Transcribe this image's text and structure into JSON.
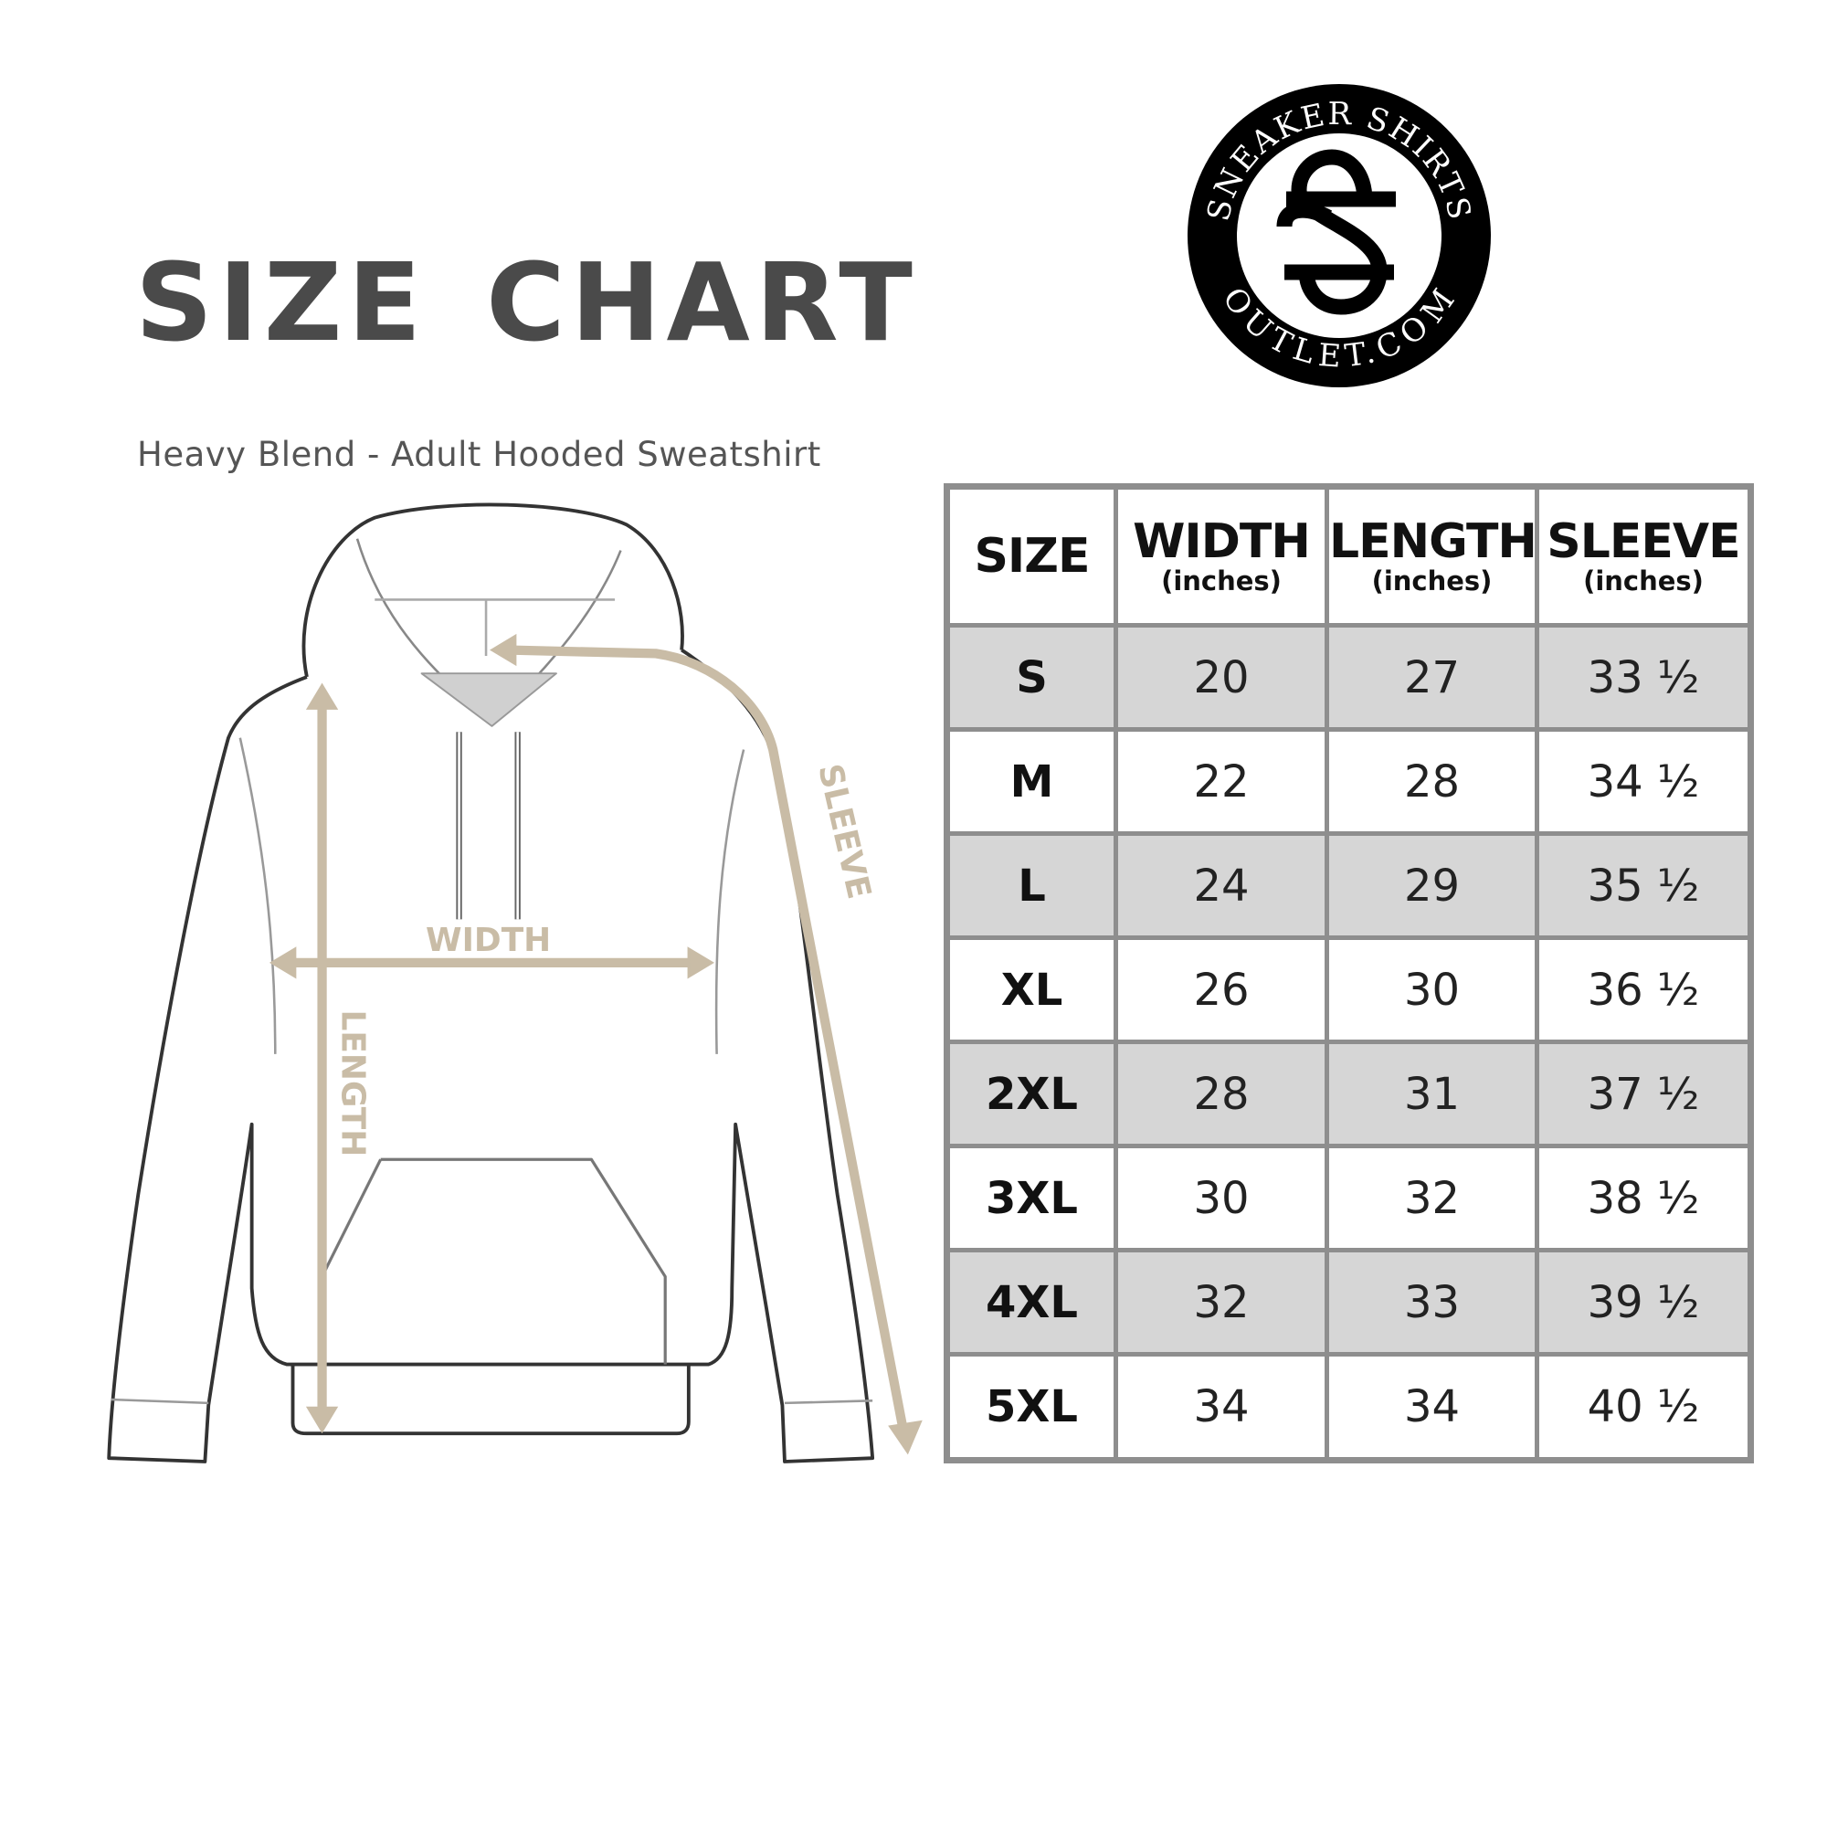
{
  "header": {
    "title": "SIZE CHART",
    "subtitle": "Heavy Blend - Adult Hooded Sweatshirt"
  },
  "logo": {
    "top_text": "SNEAKER SHIRTS",
    "bottom_text": "OUTLET.COM"
  },
  "diagram": {
    "labels": {
      "width": "WIDTH",
      "length": "LENGTH",
      "sleeve": "SLEEVE"
    },
    "arrow_color": "#c9bca6"
  },
  "table": {
    "headers": [
      {
        "label": "SIZE",
        "unit": ""
      },
      {
        "label": "WIDTH",
        "unit": "(inches)"
      },
      {
        "label": "LENGTH",
        "unit": "(inches)"
      },
      {
        "label": "SLEEVE",
        "unit": "(inches)"
      }
    ],
    "rows": [
      {
        "size": "S",
        "width": "20",
        "length": "27",
        "sleeve": "33 ½"
      },
      {
        "size": "M",
        "width": "22",
        "length": "28",
        "sleeve": "34 ½"
      },
      {
        "size": "L",
        "width": "24",
        "length": "29",
        "sleeve": "35 ½"
      },
      {
        "size": "XL",
        "width": "26",
        "length": "30",
        "sleeve": "36 ½"
      },
      {
        "size": "2XL",
        "width": "28",
        "length": "31",
        "sleeve": "37 ½"
      },
      {
        "size": "3XL",
        "width": "30",
        "length": "32",
        "sleeve": "38 ½"
      },
      {
        "size": "4XL",
        "width": "32",
        "length": "33",
        "sleeve": "39 ½"
      },
      {
        "size": "5XL",
        "width": "34",
        "length": "34",
        "sleeve": "40 ½"
      }
    ]
  }
}
